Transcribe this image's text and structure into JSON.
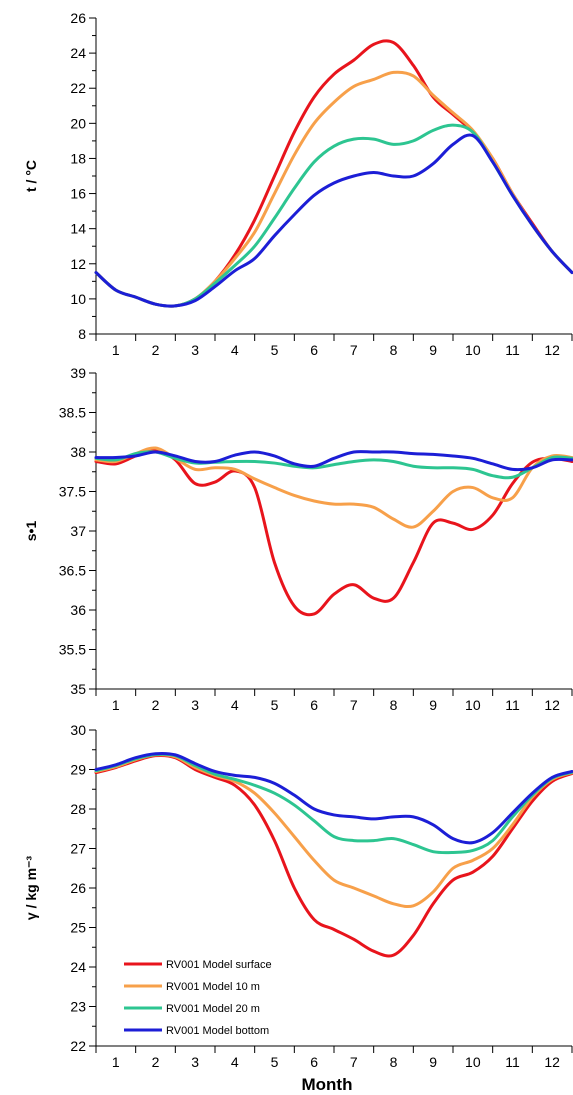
{
  "chart_data": [
    {
      "type": "line",
      "ylabel": "t / °C",
      "ylim": [
        8,
        26
      ],
      "yticks": [
        8,
        10,
        12,
        14,
        16,
        18,
        20,
        22,
        24,
        26
      ],
      "xlim": [
        0.5,
        12.5
      ],
      "xticks": [
        "1",
        "2",
        "3",
        "4",
        "5",
        "6",
        "7",
        "8",
        "9",
        "10",
        "11",
        "12"
      ],
      "series": [
        {
          "name": "RV001 Model surface",
          "color": "#e8141c",
          "x": [
            0.5,
            1,
            1.5,
            2,
            2.5,
            3,
            3.5,
            4,
            4.5,
            5,
            5.5,
            6,
            6.5,
            7,
            7.5,
            8,
            8.5,
            9,
            9.5,
            10,
            10.5,
            11,
            11.5,
            12,
            12.5
          ],
          "y": [
            11.5,
            10.5,
            10.1,
            9.7,
            9.6,
            10.0,
            11.0,
            12.5,
            14.5,
            17.0,
            19.5,
            21.5,
            22.8,
            23.6,
            24.5,
            24.6,
            23.3,
            21.5,
            20.5,
            19.5,
            18.0,
            16.0,
            14.3,
            12.7,
            11.5
          ]
        },
        {
          "name": "RV001 Model 10 m",
          "color": "#f7a04a",
          "x": [
            0.5,
            1,
            1.5,
            2,
            2.5,
            3,
            3.5,
            4,
            4.5,
            5,
            5.5,
            6,
            6.5,
            7,
            7.5,
            8,
            8.5,
            9,
            9.5,
            10,
            10.5,
            11,
            11.5,
            12,
            12.5
          ],
          "y": [
            11.5,
            10.5,
            10.1,
            9.7,
            9.6,
            10.0,
            11.0,
            12.3,
            13.8,
            16.0,
            18.2,
            20.0,
            21.2,
            22.1,
            22.5,
            22.9,
            22.7,
            21.6,
            20.6,
            19.6,
            18.0,
            16.0,
            14.2,
            12.7,
            11.5
          ]
        },
        {
          "name": "RV001 Model 20 m",
          "color": "#2dc591",
          "x": [
            0.5,
            1,
            1.5,
            2,
            2.5,
            3,
            3.5,
            4,
            4.5,
            5,
            5.5,
            6,
            6.5,
            7,
            7.5,
            8,
            8.5,
            9,
            9.5,
            10,
            10.5,
            11,
            11.5,
            12,
            12.5
          ],
          "y": [
            11.5,
            10.5,
            10.1,
            9.7,
            9.6,
            10.0,
            10.9,
            11.9,
            13.0,
            14.6,
            16.3,
            17.8,
            18.7,
            19.1,
            19.1,
            18.8,
            19.0,
            19.6,
            19.9,
            19.5,
            17.8,
            15.9,
            14.2,
            12.7,
            11.5
          ]
        },
        {
          "name": "RV001 Model bottom",
          "color": "#1c1ed6",
          "x": [
            0.5,
            1,
            1.5,
            2,
            2.5,
            3,
            3.5,
            4,
            4.5,
            5,
            5.5,
            6,
            6.5,
            7,
            7.5,
            8,
            8.5,
            9,
            9.5,
            10,
            10.5,
            11,
            11.5,
            12,
            12.5
          ],
          "y": [
            11.5,
            10.5,
            10.1,
            9.7,
            9.6,
            9.9,
            10.7,
            11.6,
            12.3,
            13.6,
            14.8,
            15.9,
            16.6,
            17.0,
            17.2,
            17.0,
            17.0,
            17.7,
            18.8,
            19.3,
            17.8,
            15.9,
            14.2,
            12.7,
            11.5
          ]
        }
      ]
    },
    {
      "type": "line",
      "ylabel": "s•1",
      "ylim": [
        35,
        39
      ],
      "yticks": [
        35,
        35.5,
        36,
        36.5,
        37,
        37.5,
        38,
        38.5,
        39
      ],
      "xlim": [
        0.5,
        12.5
      ],
      "xticks": [
        "1",
        "2",
        "3",
        "4",
        "5",
        "6",
        "7",
        "8",
        "9",
        "10",
        "11",
        "12"
      ],
      "series": [
        {
          "name": "RV001 Model surface",
          "color": "#e8141c",
          "x": [
            0.5,
            1,
            1.5,
            2,
            2.5,
            3,
            3.5,
            4,
            4.5,
            5,
            5.5,
            6,
            6.5,
            7,
            7.5,
            8,
            8.5,
            9,
            9.5,
            10,
            10.5,
            11,
            11.5,
            12,
            12.5
          ],
          "y": [
            37.88,
            37.85,
            37.95,
            38.03,
            37.9,
            37.6,
            37.62,
            37.76,
            37.55,
            36.6,
            36.05,
            35.95,
            36.2,
            36.32,
            36.15,
            36.15,
            36.6,
            37.1,
            37.1,
            37.02,
            37.2,
            37.6,
            37.87,
            37.92,
            37.88
          ]
        },
        {
          "name": "RV001 Model 10 m",
          "color": "#f7a04a",
          "x": [
            0.5,
            1,
            1.5,
            2,
            2.5,
            3,
            3.5,
            4,
            4.5,
            5,
            5.5,
            6,
            6.5,
            7,
            7.5,
            8,
            8.5,
            9,
            9.5,
            10,
            10.5,
            11,
            11.5,
            12,
            12.5
          ],
          "y": [
            37.9,
            37.88,
            37.98,
            38.05,
            37.92,
            37.78,
            37.8,
            37.78,
            37.66,
            37.55,
            37.45,
            37.38,
            37.34,
            37.34,
            37.3,
            37.15,
            37.05,
            37.25,
            37.5,
            37.55,
            37.42,
            37.42,
            37.8,
            37.95,
            37.93
          ]
        },
        {
          "name": "RV001 Model 20 m",
          "color": "#2dc591",
          "x": [
            0.5,
            1,
            1.5,
            2,
            2.5,
            3,
            3.5,
            4,
            4.5,
            5,
            5.5,
            6,
            6.5,
            7,
            7.5,
            8,
            8.5,
            9,
            9.5,
            10,
            10.5,
            11,
            11.5,
            12,
            12.5
          ],
          "y": [
            37.92,
            37.9,
            37.98,
            38.0,
            37.92,
            37.86,
            37.87,
            37.88,
            37.88,
            37.86,
            37.82,
            37.8,
            37.84,
            37.88,
            37.9,
            37.88,
            37.82,
            37.8,
            37.8,
            37.78,
            37.7,
            37.68,
            37.8,
            37.93,
            37.92
          ]
        },
        {
          "name": "RV001 Model bottom",
          "color": "#1c1ed6",
          "x": [
            0.5,
            1,
            1.5,
            2,
            2.5,
            3,
            3.5,
            4,
            4.5,
            5,
            5.5,
            6,
            6.5,
            7,
            7.5,
            8,
            8.5,
            9,
            9.5,
            10,
            10.5,
            11,
            11.5,
            12,
            12.5
          ],
          "y": [
            37.93,
            37.93,
            37.95,
            38.0,
            37.95,
            37.88,
            37.88,
            37.96,
            38.0,
            37.95,
            37.85,
            37.82,
            37.92,
            38.0,
            38.0,
            38.0,
            37.98,
            37.97,
            37.95,
            37.92,
            37.85,
            37.78,
            37.8,
            37.9,
            37.9
          ]
        }
      ]
    },
    {
      "type": "line",
      "ylabel": "γ / kg m⁻³",
      "ylim": [
        22,
        30
      ],
      "yticks": [
        22,
        23,
        24,
        25,
        26,
        27,
        28,
        29,
        30
      ],
      "xlim": [
        0.5,
        12.5
      ],
      "xticks": [
        "1",
        "2",
        "3",
        "4",
        "5",
        "6",
        "7",
        "8",
        "9",
        "10",
        "11",
        "12"
      ],
      "series": [
        {
          "name": "RV001 Model surface",
          "color": "#e8141c",
          "x": [
            0.5,
            1,
            1.5,
            2,
            2.5,
            3,
            3.5,
            4,
            4.5,
            5,
            5.5,
            6,
            6.5,
            7,
            7.5,
            8,
            8.5,
            9,
            9.5,
            10,
            10.5,
            11,
            11.5,
            12,
            12.5
          ],
          "y": [
            28.92,
            29.05,
            29.22,
            29.35,
            29.3,
            29.0,
            28.8,
            28.6,
            28.1,
            27.2,
            26.0,
            25.2,
            24.95,
            24.7,
            24.4,
            24.3,
            24.8,
            25.6,
            26.2,
            26.4,
            26.8,
            27.5,
            28.2,
            28.7,
            28.9
          ]
        },
        {
          "name": "RV001 Model 10 m",
          "color": "#f7a04a",
          "x": [
            0.5,
            1,
            1.5,
            2,
            2.5,
            3,
            3.5,
            4,
            4.5,
            5,
            5.5,
            6,
            6.5,
            7,
            7.5,
            8,
            8.5,
            9,
            9.5,
            10,
            10.5,
            11,
            11.5,
            12,
            12.5
          ],
          "y": [
            28.95,
            29.07,
            29.25,
            29.37,
            29.32,
            29.05,
            28.85,
            28.7,
            28.4,
            27.9,
            27.3,
            26.7,
            26.2,
            26.0,
            25.8,
            25.6,
            25.55,
            25.9,
            26.5,
            26.7,
            27.0,
            27.6,
            28.3,
            28.75,
            28.92
          ]
        },
        {
          "name": "RV001 Model 20 m",
          "color": "#2dc591",
          "x": [
            0.5,
            1,
            1.5,
            2,
            2.5,
            3,
            3.5,
            4,
            4.5,
            5,
            5.5,
            6,
            6.5,
            7,
            7.5,
            8,
            8.5,
            9,
            9.5,
            10,
            10.5,
            11,
            11.5,
            12,
            12.5
          ],
          "y": [
            28.97,
            29.1,
            29.27,
            29.38,
            29.35,
            29.1,
            28.88,
            28.75,
            28.6,
            28.4,
            28.1,
            27.7,
            27.3,
            27.2,
            27.2,
            27.25,
            27.1,
            26.92,
            26.9,
            26.95,
            27.2,
            27.8,
            28.35,
            28.78,
            28.93
          ]
        },
        {
          "name": "RV001 Model bottom",
          "color": "#1c1ed6",
          "x": [
            0.5,
            1,
            1.5,
            2,
            2.5,
            3,
            3.5,
            4,
            4.5,
            5,
            5.5,
            6,
            6.5,
            7,
            7.5,
            8,
            8.5,
            9,
            9.5,
            10,
            10.5,
            11,
            11.5,
            12,
            12.5
          ],
          "y": [
            29.0,
            29.12,
            29.3,
            29.4,
            29.37,
            29.15,
            28.95,
            28.85,
            28.8,
            28.65,
            28.35,
            28.0,
            27.85,
            27.8,
            27.75,
            27.8,
            27.8,
            27.6,
            27.25,
            27.15,
            27.4,
            27.9,
            28.4,
            28.8,
            28.95
          ]
        }
      ]
    }
  ],
  "xlabel": "Month",
  "legend": {
    "placement": "bottom-left of third panel",
    "entries": [
      {
        "label": "RV001 Model surface",
        "color": "#e8141c"
      },
      {
        "label": "RV001 Model 10 m",
        "color": "#f7a04a"
      },
      {
        "label": "RV001 Model 20 m",
        "color": "#2dc591"
      },
      {
        "label": "RV001 Model bottom",
        "color": "#1c1ed6"
      }
    ]
  }
}
